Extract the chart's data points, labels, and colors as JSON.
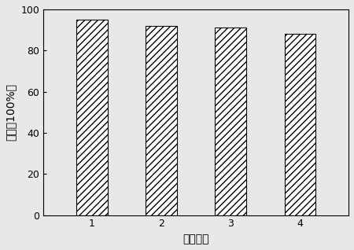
{
  "categories": [
    "1",
    "2",
    "3",
    "4"
  ],
  "values": [
    95,
    92,
    91,
    88
  ],
  "xlabel": "循环次数",
  "ylabel": "得率（100%）",
  "ylim": [
    0,
    100
  ],
  "yticks": [
    0,
    20,
    40,
    60,
    80,
    100
  ],
  "bar_width": 0.45,
  "hatch": "////",
  "bar_facecolor": "#ffffff",
  "bar_edgecolor": "#000000",
  "hatch_color": "#888888",
  "background_color": "#e8e8e8",
  "plot_bg_color": "#e8e8e8",
  "xlabel_fontsize": 10,
  "ylabel_fontsize": 10,
  "tick_fontsize": 9,
  "xlim": [
    0.3,
    4.7
  ]
}
